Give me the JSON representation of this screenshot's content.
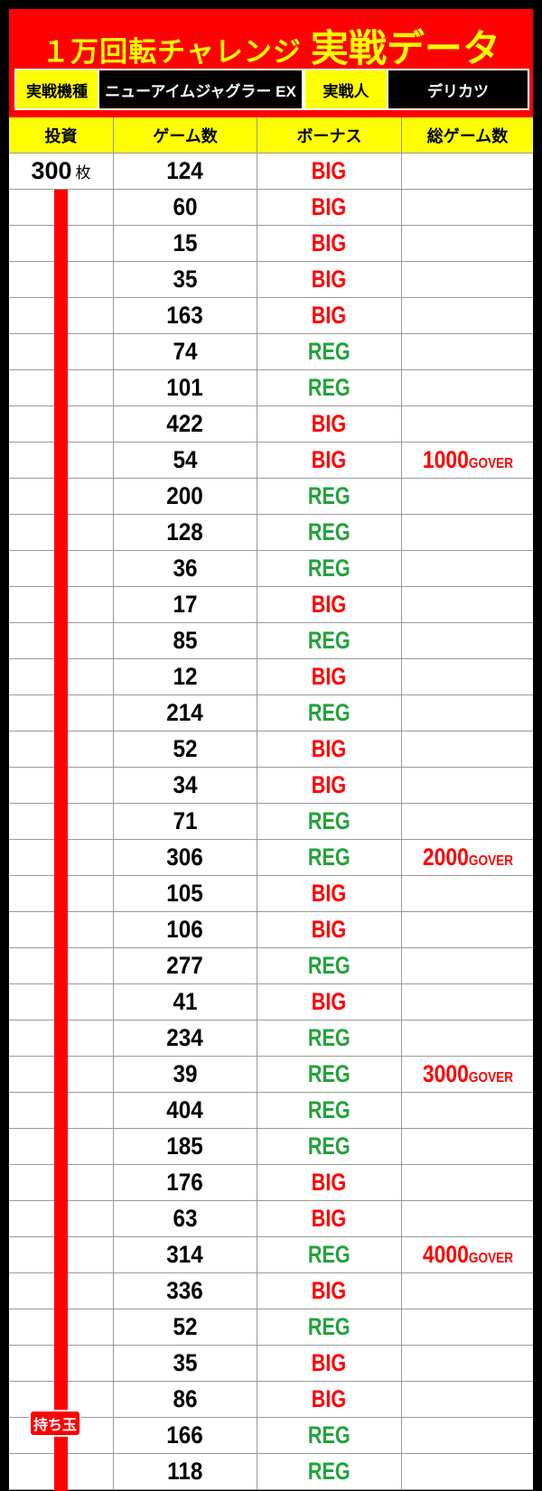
{
  "header": {
    "title_main": "１万回転チャレンジ",
    "title_sub": "実戦データ",
    "machine_label": "実戦機種",
    "machine_value": "ニューアイムジャグラー EX",
    "player_label": "実戦人",
    "player_value": "デリカツ"
  },
  "table": {
    "columns": [
      "投資",
      "ゲーム数",
      "ボーナス",
      "総ゲーム数"
    ],
    "investment": {
      "value": "300",
      "unit": "枚"
    },
    "mochidama_label": "持ち玉",
    "rows": [
      {
        "games": "124",
        "bonus": "BIG",
        "total": ""
      },
      {
        "games": "60",
        "bonus": "BIG",
        "total": ""
      },
      {
        "games": "15",
        "bonus": "BIG",
        "total": ""
      },
      {
        "games": "35",
        "bonus": "BIG",
        "total": ""
      },
      {
        "games": "163",
        "bonus": "BIG",
        "total": ""
      },
      {
        "games": "74",
        "bonus": "REG",
        "total": ""
      },
      {
        "games": "101",
        "bonus": "REG",
        "total": ""
      },
      {
        "games": "422",
        "bonus": "BIG",
        "total": ""
      },
      {
        "games": "54",
        "bonus": "BIG",
        "total": "1000",
        "total_suffix": "GOVER"
      },
      {
        "games": "200",
        "bonus": "REG",
        "total": ""
      },
      {
        "games": "128",
        "bonus": "REG",
        "total": ""
      },
      {
        "games": "36",
        "bonus": "REG",
        "total": ""
      },
      {
        "games": "17",
        "bonus": "BIG",
        "total": ""
      },
      {
        "games": "85",
        "bonus": "REG",
        "total": ""
      },
      {
        "games": "12",
        "bonus": "BIG",
        "total": ""
      },
      {
        "games": "214",
        "bonus": "REG",
        "total": ""
      },
      {
        "games": "52",
        "bonus": "BIG",
        "total": ""
      },
      {
        "games": "34",
        "bonus": "BIG",
        "total": ""
      },
      {
        "games": "71",
        "bonus": "REG",
        "total": ""
      },
      {
        "games": "306",
        "bonus": "REG",
        "total": "2000",
        "total_suffix": "GOVER"
      },
      {
        "games": "105",
        "bonus": "BIG",
        "total": ""
      },
      {
        "games": "106",
        "bonus": "BIG",
        "total": ""
      },
      {
        "games": "277",
        "bonus": "REG",
        "total": ""
      },
      {
        "games": "41",
        "bonus": "BIG",
        "total": ""
      },
      {
        "games": "234",
        "bonus": "REG",
        "total": ""
      },
      {
        "games": "39",
        "bonus": "REG",
        "total": "3000",
        "total_suffix": "GOVER"
      },
      {
        "games": "404",
        "bonus": "REG",
        "total": ""
      },
      {
        "games": "185",
        "bonus": "REG",
        "total": ""
      },
      {
        "games": "176",
        "bonus": "BIG",
        "total": ""
      },
      {
        "games": "63",
        "bonus": "BIG",
        "total": ""
      },
      {
        "games": "314",
        "bonus": "REG",
        "total": "4000",
        "total_suffix": "GOVER"
      },
      {
        "games": "336",
        "bonus": "BIG",
        "total": ""
      },
      {
        "games": "52",
        "bonus": "REG",
        "total": ""
      },
      {
        "games": "35",
        "bonus": "BIG",
        "total": ""
      },
      {
        "games": "86",
        "bonus": "BIG",
        "total": ""
      },
      {
        "games": "166",
        "bonus": "REG",
        "total": ""
      },
      {
        "games": "118",
        "bonus": "REG",
        "total": ""
      }
    ]
  },
  "colors": {
    "big": "#ff0000",
    "reg": "#22a33a",
    "accent": "#ffff00",
    "header_bg": "#ff0000"
  }
}
